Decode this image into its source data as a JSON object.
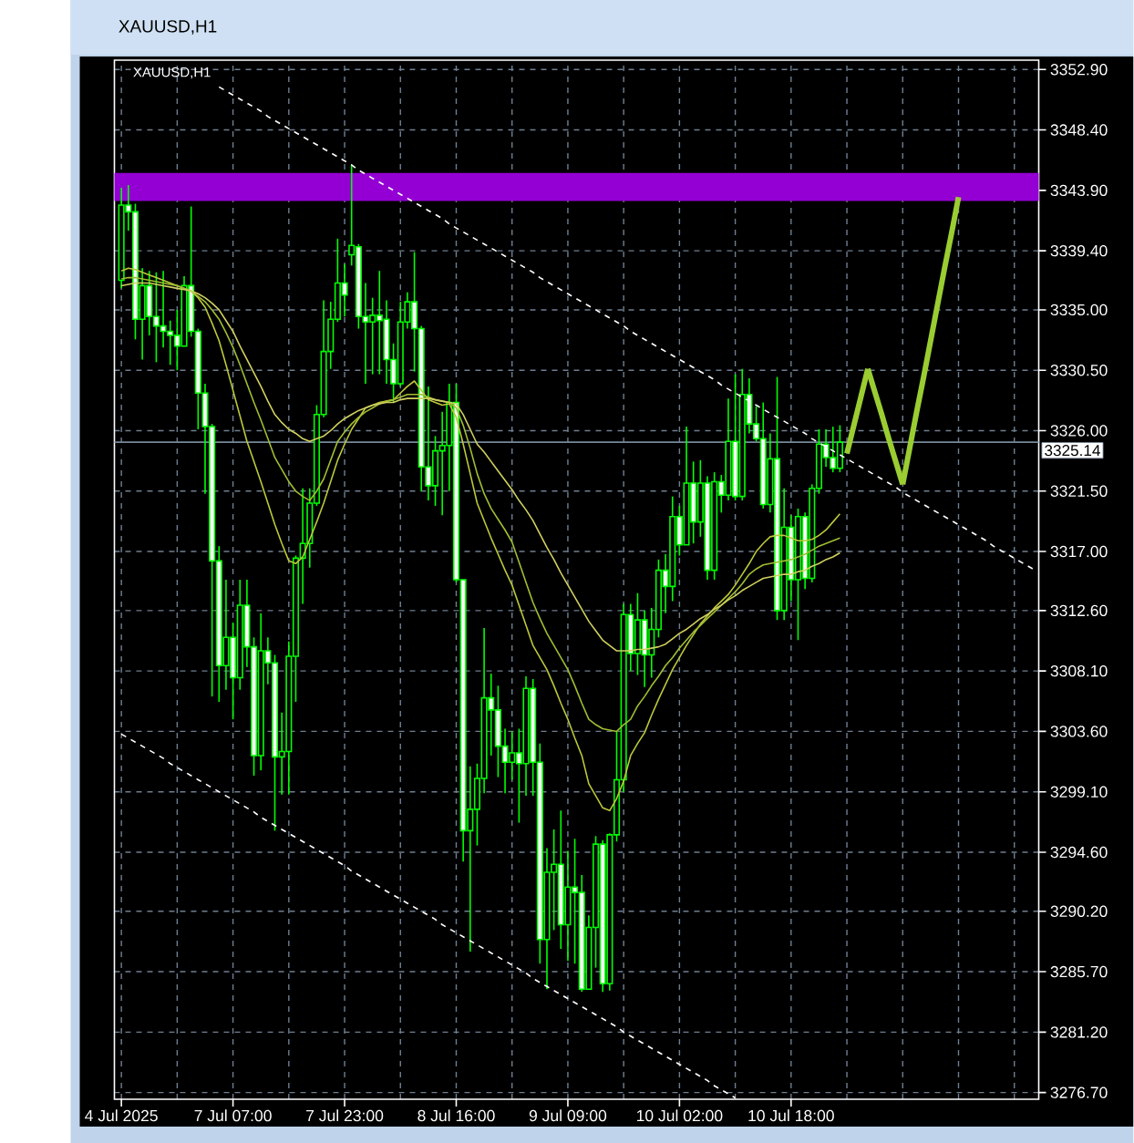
{
  "chart_data": {
    "type": "candlestick",
    "title": "XAUUSD,H1",
    "annotations": [
      "XAUUSD,H1"
    ],
    "categories": [
      "4 Jul 2025",
      null,
      null,
      null,
      null,
      null,
      null,
      null,
      null,
      null,
      null,
      null,
      null,
      null,
      null,
      null,
      "7 Jul 07:00",
      null,
      null,
      null,
      null,
      null,
      null,
      null,
      null,
      null,
      null,
      null,
      null,
      null,
      null,
      null,
      "7 Jul 23:00",
      null,
      null,
      null,
      null,
      null,
      null,
      null,
      null,
      null,
      null,
      null,
      null,
      null,
      null,
      null,
      "8 Jul 16:00",
      null,
      null,
      null,
      null,
      null,
      null,
      null,
      null,
      null,
      null,
      null,
      null,
      null,
      null,
      null,
      "9 Jul 09:00",
      null,
      null,
      null,
      null,
      null,
      null,
      null,
      null,
      null,
      null,
      null,
      null,
      null,
      null,
      null,
      "10 Jul 02:00",
      null,
      null,
      null,
      null,
      null,
      null,
      null,
      null,
      null,
      null,
      null,
      null,
      null,
      null,
      null,
      "10 Jul 18:00",
      null,
      null,
      null,
      null,
      null,
      null,
      null,
      null,
      null,
      null,
      null,
      null,
      null,
      null,
      null,
      null,
      null,
      null,
      null,
      null,
      null,
      null,
      null,
      null,
      null,
      null,
      null,
      null,
      null,
      null,
      null,
      null,
      null,
      null,
      null
    ],
    "series": [
      {
        "type": "line",
        "color": "#bcc83a",
        "values": [
          3337.9,
          3338.1,
          3338.0,
          3337.8,
          3337.6,
          3337.4,
          3337.2,
          3337.0,
          3336.8,
          3336.6,
          3336.4,
          3335.9,
          3335.2,
          3334.0,
          3332.7,
          3330.9,
          3329.0,
          3327.1,
          3325.2,
          3323.7,
          3322.2,
          3320.6,
          3319.0,
          3317.6,
          3316.3,
          3316.1,
          3316.6,
          3317.9,
          3319.2,
          3320.6,
          3322.2,
          3323.8,
          3325.0,
          3326.1,
          3326.9,
          3327.7,
          3327.9,
          3328.1,
          3328.2,
          3328.3,
          3328.8,
          3329.3,
          3329.7,
          3329.0,
          3328.3,
          3328.1,
          3327.9,
          3328.0,
          3327.0,
          3325.0,
          3322.8,
          3320.6,
          3319.3,
          3318.0,
          3316.8,
          3315.6,
          3314.5,
          3313.0,
          3311.5,
          3310.0,
          3309.1,
          3308.2,
          3307.0,
          3305.7,
          3304.5,
          3303.1,
          3301.8,
          3299.7,
          3298.8,
          3297.9,
          3297.7,
          3298.6,
          3299.9,
          3301.8,
          3302.7,
          3303.5,
          3304.8,
          3306.0,
          3307.1,
          3308.2,
          3309.1,
          3310.0,
          3310.8,
          3311.6,
          3312.2,
          3312.8,
          3313.3,
          3313.8,
          3314.5,
          3315.3,
          3316.1,
          3317.0,
          3317.6,
          3318.1,
          3318.2,
          3318.2,
          3318.0,
          3317.8,
          3317.8,
          3317.9,
          3318.2,
          3318.6,
          3319.2,
          3319.8,
          null,
          null,
          null,
          null,
          null,
          null,
          null,
          null,
          null,
          null,
          null,
          null,
          null,
          null,
          null,
          null,
          null,
          null,
          null,
          null,
          null,
          null,
          null,
          null,
          null,
          null,
          null,
          null
        ]
      },
      {
        "type": "line",
        "color": "#a0be32",
        "values": [
          3337.3,
          3337.4,
          3337.4,
          3337.3,
          3337.2,
          3337.1,
          3337.0,
          3336.9,
          3336.8,
          3336.6,
          3336.4,
          3336.0,
          3335.6,
          3335.0,
          3334.3,
          3333.3,
          3332.2,
          3330.9,
          3329.5,
          3328.1,
          3326.8,
          3325.4,
          3324.0,
          3323.1,
          3322.2,
          3321.5,
          3321.1,
          3320.8,
          3321.5,
          3322.4,
          3323.8,
          3325.2,
          3325.9,
          3326.5,
          3327.0,
          3327.4,
          3327.7,
          3328.0,
          3328.2,
          3328.3,
          3328.5,
          3328.7,
          3328.7,
          3328.7,
          3328.5,
          3328.3,
          3328.2,
          3328.1,
          3327.7,
          3326.4,
          3324.7,
          3322.8,
          3321.3,
          3320.2,
          3319.4,
          3318.6,
          3317.7,
          3316.2,
          3314.7,
          3313.2,
          3312.0,
          3310.9,
          3310.0,
          3309.1,
          3308.2,
          3307.0,
          3305.7,
          3304.5,
          3304.1,
          3303.8,
          3303.7,
          3303.6,
          3304.1,
          3304.5,
          3305.5,
          3306.2,
          3307.0,
          3307.7,
          3308.5,
          3309.1,
          3309.8,
          3310.4,
          3311.0,
          3311.5,
          3312.0,
          3312.5,
          3313.0,
          3313.5,
          3314.0,
          3314.6,
          3315.3,
          3315.7,
          3316.0,
          3316.1,
          3316.2,
          3316.3,
          3316.4,
          3316.6,
          3316.8,
          3317.1,
          3317.4,
          3317.6,
          3317.8,
          3318.0,
          null,
          null,
          null,
          null,
          null,
          null,
          null,
          null,
          null,
          null,
          null,
          null,
          null,
          null,
          null,
          null,
          null,
          null,
          null,
          null,
          null,
          null,
          null,
          null,
          null,
          null,
          null,
          null
        ]
      },
      {
        "type": "line",
        "color": "#d0d060",
        "values": [
          3336.8,
          3336.9,
          3337.0,
          3337.0,
          3337.0,
          3336.9,
          3336.8,
          3336.7,
          3336.6,
          3336.5,
          3336.4,
          3336.2,
          3335.9,
          3335.5,
          3335.0,
          3334.2,
          3333.4,
          3332.3,
          3331.3,
          3330.3,
          3329.3,
          3328.2,
          3327.2,
          3326.6,
          3326.1,
          3325.8,
          3325.4,
          3325.2,
          3325.4,
          3325.6,
          3326.0,
          3326.5,
          3326.9,
          3327.2,
          3327.5,
          3327.7,
          3327.9,
          3328.0,
          3328.1,
          3328.1,
          3328.3,
          3328.4,
          3328.4,
          3328.4,
          3328.4,
          3328.3,
          3328.2,
          3328.1,
          3328.0,
          3327.2,
          3326.1,
          3325.0,
          3324.4,
          3323.7,
          3323.0,
          3322.3,
          3321.6,
          3320.8,
          3320.1,
          3319.3,
          3318.3,
          3317.3,
          3316.4,
          3315.4,
          3314.5,
          3313.6,
          3312.7,
          3311.8,
          3311.1,
          3310.4,
          3310.0,
          3309.6,
          3309.6,
          3309.6,
          3309.7,
          3309.7,
          3309.8,
          3309.9,
          3310.1,
          3310.5,
          3310.9,
          3311.2,
          3311.6,
          3312.0,
          3312.3,
          3312.7,
          3313.0,
          3313.4,
          3313.7,
          3314.1,
          3314.4,
          3314.7,
          3315.0,
          3315.1,
          3315.2,
          3315.3,
          3315.3,
          3315.5,
          3315.6,
          3315.9,
          3316.1,
          3316.4,
          3316.6,
          3316.9,
          null,
          null,
          null,
          null,
          null,
          null,
          null,
          null,
          null,
          null,
          null,
          null,
          null,
          null,
          null,
          null,
          null,
          null,
          null,
          null,
          null,
          null,
          null,
          null,
          null,
          null,
          null,
          null
        ]
      },
      {
        "type": "line",
        "color": "#ffffff",
        "line_style": "dashed",
        "values": [
          null,
          null,
          null,
          null,
          null,
          null,
          null,
          null,
          null,
          null,
          null,
          null,
          null,
          null,
          3351.6,
          3351.3,
          3351.0,
          3350.7,
          3350.4,
          3350.1,
          3349.8,
          3349.4,
          3349.1,
          3348.8,
          3348.5,
          3348.2,
          3347.9,
          3347.6,
          3347.3,
          3347.0,
          3346.7,
          3346.4,
          3346.1,
          3345.8,
          3345.4,
          3345.1,
          3344.8,
          3344.5,
          3344.2,
          3343.9,
          3343.6,
          3343.3,
          3343.0,
          3342.7,
          3342.4,
          3342.1,
          3341.8,
          3341.4,
          3341.1,
          3340.8,
          3340.5,
          3340.2,
          3339.9,
          3339.6,
          3339.3,
          3339.0,
          3338.7,
          3338.4,
          3338.1,
          3337.8,
          3337.4,
          3337.1,
          3336.8,
          3336.5,
          3336.2,
          3335.9,
          3335.6,
          3335.3,
          3335.0,
          3334.7,
          3334.4,
          3334.1,
          3333.8,
          3333.4,
          3333.1,
          3332.8,
          3332.5,
          3332.2,
          3331.9,
          3331.6,
          3331.3,
          3331.0,
          3330.7,
          3330.4,
          3330.1,
          3329.8,
          3329.4,
          3329.1,
          3328.8,
          3328.5,
          3328.2,
          3327.9,
          3327.6,
          3327.3,
          3327.0,
          3326.7,
          3326.4,
          3326.1,
          3325.8,
          3325.4,
          3325.1,
          3324.8,
          3324.5,
          3324.2,
          3323.9,
          3323.6,
          3323.3,
          3323.0,
          3322.7,
          3322.4,
          3322.1,
          3321.8,
          3321.4,
          3321.1,
          3320.8,
          3320.5,
          3320.2,
          3319.9,
          3319.6,
          3319.3,
          3319.0,
          3318.7,
          3318.4,
          3318.1,
          3317.8,
          3317.4,
          3317.1,
          3316.8,
          3316.5,
          3316.2,
          3315.9,
          3315.6
        ]
      },
      {
        "type": "line",
        "color": "#ffffff",
        "line_style": "dashed",
        "values": [
          3303.4,
          3303.1,
          3302.8,
          3302.5,
          3302.2,
          3301.9,
          3301.6,
          3301.2,
          3300.9,
          3300.6,
          3300.3,
          3300.0,
          3299.7,
          3299.4,
          3299.1,
          3298.8,
          3298.5,
          3298.2,
          3297.9,
          3297.6,
          3297.2,
          3296.9,
          3296.6,
          3296.3,
          3296.0,
          3295.7,
          3295.4,
          3295.1,
          3294.8,
          3294.5,
          3294.2,
          3293.9,
          3293.6,
          3293.2,
          3292.9,
          3292.6,
          3292.3,
          3292.0,
          3291.7,
          3291.4,
          3291.1,
          3290.8,
          3290.5,
          3290.2,
          3289.9,
          3289.6,
          3289.2,
          3288.9,
          3288.6,
          3288.3,
          3288.0,
          3287.7,
          3287.4,
          3287.1,
          3286.8,
          3286.5,
          3286.2,
          3285.9,
          3285.6,
          3285.2,
          3284.9,
          3284.6,
          3284.3,
          3284.0,
          3283.7,
          3283.4,
          3283.1,
          3282.8,
          3282.5,
          3282.2,
          3281.9,
          3281.6,
          3281.2,
          3280.9,
          3280.6,
          3280.3,
          3280.0,
          3279.7,
          3279.4,
          3279.1,
          3278.8,
          3278.5,
          3278.2,
          3277.9,
          3277.6,
          3277.2,
          3276.9,
          3276.6,
          3276.3,
          null,
          null,
          null,
          null,
          null,
          null,
          null,
          null,
          null,
          null,
          null,
          null,
          null,
          null,
          null,
          null,
          null,
          null,
          null,
          null,
          null,
          null,
          null,
          null,
          null,
          null,
          null,
          null,
          null,
          null,
          null,
          null,
          null,
          null,
          null,
          null,
          null,
          null,
          null,
          null,
          null,
          null,
          null
        ]
      },
      {
        "type": "line",
        "color": "#9acd32",
        "line_style": "solid",
        "values": [
          null,
          null,
          null,
          null,
          null,
          null,
          null,
          null,
          null,
          null,
          null,
          null,
          null,
          null,
          null,
          null,
          null,
          null,
          null,
          null,
          null,
          null,
          null,
          null,
          null,
          null,
          null,
          null,
          null,
          null,
          null,
          null,
          null,
          null,
          null,
          null,
          null,
          null,
          null,
          null,
          null,
          null,
          null,
          null,
          null,
          null,
          null,
          null,
          null,
          null,
          null,
          null,
          null,
          null,
          null,
          null,
          null,
          null,
          null,
          null,
          null,
          null,
          null,
          null,
          null,
          null,
          null,
          null,
          null,
          null,
          null,
          null,
          null,
          null,
          null,
          null,
          null,
          null,
          null,
          null,
          null,
          null,
          null,
          null,
          null,
          null,
          null,
          null,
          null,
          null,
          null,
          null,
          null,
          null,
          null,
          null,
          null,
          null,
          null,
          null,
          null,
          null,
          null,
          null,
          3324.3,
          3326.4,
          3328.5,
          3330.6,
          null,
          null,
          null,
          null,
          null,
          null,
          null,
          null,
          null,
          null,
          null,
          null,
          null,
          null,
          null,
          null,
          null,
          null,
          null,
          null,
          null,
          null,
          null,
          null
        ]
      },
      {
        "type": "line",
        "color": "#9acd32",
        "line_style": "solid",
        "values": [
          null,
          null,
          null,
          null,
          null,
          null,
          null,
          null,
          null,
          null,
          null,
          null,
          null,
          null,
          null,
          null,
          null,
          null,
          null,
          null,
          null,
          null,
          null,
          null,
          null,
          null,
          null,
          null,
          null,
          null,
          null,
          null,
          null,
          null,
          null,
          null,
          null,
          null,
          null,
          null,
          null,
          null,
          null,
          null,
          null,
          null,
          null,
          null,
          null,
          null,
          null,
          null,
          null,
          null,
          null,
          null,
          null,
          null,
          null,
          null,
          null,
          null,
          null,
          null,
          null,
          null,
          null,
          null,
          null,
          null,
          null,
          null,
          null,
          null,
          null,
          null,
          null,
          null,
          null,
          null,
          null,
          null,
          null,
          null,
          null,
          null,
          null,
          null,
          null,
          null,
          null,
          null,
          null,
          null,
          null,
          null,
          null,
          null,
          null,
          null,
          null,
          null,
          null,
          null,
          null,
          null,
          null,
          3330.6,
          3328.9,
          3327.2,
          3325.4,
          3323.7,
          3322.0,
          null,
          null,
          null,
          null,
          null,
          null,
          null,
          null,
          null,
          null,
          null,
          null,
          null,
          null,
          null,
          null,
          null,
          null,
          null
        ]
      },
      {
        "type": "line",
        "color": "#9acd32",
        "line_style": "solid",
        "values": [
          null,
          null,
          null,
          null,
          null,
          null,
          null,
          null,
          null,
          null,
          null,
          null,
          null,
          null,
          null,
          null,
          null,
          null,
          null,
          null,
          null,
          null,
          null,
          null,
          null,
          null,
          null,
          null,
          null,
          null,
          null,
          null,
          null,
          null,
          null,
          null,
          null,
          null,
          null,
          null,
          null,
          null,
          null,
          null,
          null,
          null,
          null,
          null,
          null,
          null,
          null,
          null,
          null,
          null,
          null,
          null,
          null,
          null,
          null,
          null,
          null,
          null,
          null,
          null,
          null,
          null,
          null,
          null,
          null,
          null,
          null,
          null,
          null,
          null,
          null,
          null,
          null,
          null,
          null,
          null,
          null,
          null,
          null,
          null,
          null,
          null,
          null,
          null,
          null,
          null,
          null,
          null,
          null,
          null,
          null,
          null,
          null,
          null,
          null,
          null,
          null,
          null,
          null,
          null,
          null,
          null,
          null,
          null,
          null,
          null,
          null,
          null,
          3322.0,
          3324.7,
          3327.4,
          3330.0,
          3332.7,
          3335.4,
          3338.1,
          3340.7,
          3343.4,
          null,
          null,
          null,
          null,
          null,
          null,
          null,
          null,
          null,
          null,
          null
        ]
      },
      {
        "color": "#00ff00",
        "ohlc": [
          [
            3337.2,
            3344.1,
            3336.6,
            3342.8
          ],
          [
            3342.8,
            3344.3,
            3340.9,
            3342.3
          ],
          [
            3342.3,
            3342.9,
            3332.8,
            3334.3
          ],
          [
            3334.3,
            3338.1,
            3331.3,
            3336.8
          ],
          [
            3336.8,
            3337.9,
            3333.1,
            3334.5
          ],
          [
            3334.5,
            3337.8,
            3331.1,
            3333.8
          ],
          [
            3333.8,
            3337.9,
            3332.2,
            3333.4
          ],
          [
            3333.4,
            3334.2,
            3330.9,
            3333.1
          ],
          [
            3333.1,
            3335.0,
            3330.5,
            3332.3
          ],
          [
            3332.3,
            3337.5,
            3332.3,
            3336.8
          ],
          [
            3336.8,
            3342.7,
            3333.0,
            3333.4
          ],
          [
            3333.4,
            3333.6,
            3326.1,
            3328.8
          ],
          [
            3328.8,
            3329.5,
            3321.3,
            3326.3
          ],
          [
            3326.3,
            3326.5,
            3306.2,
            3316.3
          ],
          [
            3316.3,
            3317.4,
            3305.8,
            3308.5
          ],
          [
            3308.5,
            3314.9,
            3306.7,
            3310.6
          ],
          [
            3310.6,
            3311.7,
            3304.5,
            3307.6
          ],
          [
            3307.6,
            3314.9,
            3306.7,
            3313.0
          ],
          [
            3313.0,
            3314.9,
            3308.4,
            3309.9
          ],
          [
            3309.9,
            3310.6,
            3300.3,
            3301.8
          ],
          [
            3301.8,
            3312.4,
            3300.7,
            3309.6
          ],
          [
            3309.6,
            3310.6,
            3307.1,
            3308.7
          ],
          [
            3308.7,
            3309.3,
            3296.2,
            3301.7
          ],
          [
            3301.7,
            3305.0,
            3298.9,
            3302.1
          ],
          [
            3302.1,
            3310.3,
            3298.9,
            3309.2
          ],
          [
            3309.2,
            3316.7,
            3305.8,
            3316.5
          ],
          [
            3316.5,
            3321.7,
            3313.1,
            3317.6
          ],
          [
            3317.6,
            3321.7,
            3315.8,
            3320.6
          ],
          [
            3320.6,
            3327.9,
            3320.4,
            3327.2
          ],
          [
            3327.2,
            3335.7,
            3327.0,
            3331.9
          ],
          [
            3331.9,
            3335.6,
            3330.6,
            3334.3
          ],
          [
            3334.3,
            3340.3,
            3334.1,
            3337.0
          ],
          [
            3337.0,
            3338.4,
            3334.5,
            3336.1
          ],
          [
            3339.1,
            3345.8,
            3338.3,
            3339.8
          ],
          [
            3339.7,
            3339.9,
            3333.6,
            3334.5
          ],
          [
            3334.5,
            3337.0,
            3329.5,
            3334.1
          ],
          [
            3334.1,
            3335.9,
            3330.2,
            3334.6
          ],
          [
            3334.6,
            3337.9,
            3330.2,
            3334.2
          ],
          [
            3334.3,
            3335.7,
            3329.5,
            3331.3
          ],
          [
            3331.3,
            3332.5,
            3328.1,
            3329.5
          ],
          [
            3329.5,
            3335.6,
            3329.3,
            3334.1
          ],
          [
            3334.1,
            3336.3,
            3333.6,
            3335.6
          ],
          [
            3335.6,
            3339.3,
            3330.4,
            3333.6
          ],
          [
            3333.6,
            3333.8,
            3321.5,
            3323.3
          ],
          [
            3323.3,
            3329.3,
            3320.8,
            3321.9
          ],
          [
            3321.9,
            3325.6,
            3320.4,
            3324.5
          ],
          [
            3324.5,
            3327.4,
            3319.7,
            3324.9
          ],
          [
            3324.9,
            3329.5,
            3321.5,
            3328.1
          ],
          [
            3328.1,
            3329.5,
            3314.7,
            3314.9
          ],
          [
            3314.9,
            3314.9,
            3293.9,
            3296.2
          ],
          [
            3296.2,
            3301.0,
            3287.2,
            3297.8
          ],
          [
            3297.8,
            3301.2,
            3295.1,
            3300.1
          ],
          [
            3300.1,
            3311.3,
            3299.0,
            3306.1
          ],
          [
            3306.1,
            3307.9,
            3301.8,
            3305.2
          ],
          [
            3305.2,
            3307.0,
            3300.2,
            3302.5
          ],
          [
            3302.5,
            3303.8,
            3299.0,
            3301.3
          ],
          [
            3301.3,
            3303.6,
            3300.0,
            3302.0
          ],
          [
            3302.0,
            3303.8,
            3296.8,
            3301.2
          ],
          [
            3301.2,
            3307.7,
            3298.8,
            3306.8
          ],
          [
            3306.8,
            3307.5,
            3298.8,
            3301.3
          ],
          [
            3301.3,
            3302.7,
            3286.3,
            3288.1
          ],
          [
            3288.1,
            3294.9,
            3284.4,
            3293.1
          ],
          [
            3293.1,
            3296.3,
            3288.8,
            3293.7
          ],
          [
            3293.7,
            3297.7,
            3287.4,
            3289.2
          ],
          [
            3289.2,
            3294.7,
            3286.5,
            3292.0
          ],
          [
            3292.0,
            3295.6,
            3286.3,
            3291.6
          ],
          [
            3291.6,
            3292.9,
            3284.2,
            3284.4
          ],
          [
            3284.4,
            3289.9,
            3284.4,
            3289.0
          ],
          [
            3289.0,
            3295.8,
            3286.0,
            3295.2
          ],
          [
            3295.2,
            3295.5,
            3284.2,
            3284.8
          ],
          [
            3284.8,
            3296.0,
            3284.3,
            3295.9
          ],
          [
            3295.9,
            3303.6,
            3295.4,
            3300.0
          ],
          [
            3300.0,
            3313.1,
            3299.1,
            3312.3
          ],
          [
            3312.3,
            3313.1,
            3308.1,
            3309.4
          ],
          [
            3309.4,
            3313.9,
            3307.8,
            3311.9
          ],
          [
            3311.9,
            3312.6,
            3306.9,
            3309.3
          ],
          [
            3309.3,
            3312.8,
            3307.6,
            3311.2
          ],
          [
            3311.2,
            3316.4,
            3310.6,
            3315.6
          ],
          [
            3315.6,
            3316.8,
            3312.4,
            3314.4
          ],
          [
            3314.4,
            3321.1,
            3313.3,
            3319.6
          ],
          [
            3319.6,
            3320.4,
            3316.7,
            3317.5
          ],
          [
            3317.5,
            3326.3,
            3317.5,
            3322.1
          ],
          [
            3322.1,
            3323.7,
            3317.6,
            3319.2
          ],
          [
            3319.2,
            3323.8,
            3318.1,
            3322.1
          ],
          [
            3322.1,
            3322.6,
            3314.9,
            3315.6
          ],
          [
            3315.6,
            3322.9,
            3314.9,
            3322.2
          ],
          [
            3322.2,
            3322.7,
            3319.9,
            3321.2
          ],
          [
            3321.2,
            3328.4,
            3320.8,
            3325.2
          ],
          [
            3325.2,
            3330.2,
            3320.8,
            3321.1
          ],
          [
            3321.1,
            3330.6,
            3320.8,
            3328.7
          ],
          [
            3328.7,
            3329.9,
            3325.8,
            3326.5
          ],
          [
            3326.5,
            3327.8,
            3325.2,
            3325.4
          ],
          [
            3325.4,
            3328.1,
            3320.2,
            3320.5
          ],
          [
            3320.5,
            3325.8,
            3319.9,
            3323.9
          ],
          [
            3323.9,
            3330.0,
            3311.9,
            3312.6
          ],
          [
            3312.6,
            3321.7,
            3311.9,
            3318.8
          ],
          [
            3318.8,
            3319.7,
            3313.3,
            3314.9
          ],
          [
            3314.9,
            3320.2,
            3310.4,
            3319.6
          ],
          [
            3319.6,
            3319.9,
            3314.2,
            3315.0
          ],
          [
            3315.0,
            3322.0,
            3314.7,
            3321.7
          ],
          [
            3321.7,
            3326.1,
            3321.3,
            3325.0
          ],
          [
            3325.0,
            3326.1,
            3323.3,
            3324.0
          ],
          [
            3324.0,
            3326.3,
            3322.9,
            3323.2
          ],
          [
            3323.2,
            3326.4,
            3322.9,
            3325.14
          ],
          null,
          null,
          null,
          null,
          null,
          null,
          null,
          null,
          null,
          null,
          null,
          null,
          null,
          null,
          null,
          null,
          null,
          null,
          null,
          null,
          null,
          null,
          null,
          null,
          null,
          null,
          null,
          null
        ]
      }
    ],
    "ylim": [
      3276.2,
      3353.6
    ],
    "yticks": [
      {
        "value": 3352.9,
        "label": "3352.90"
      },
      {
        "value": 3348.4,
        "label": "3348.40"
      },
      {
        "value": 3343.9,
        "label": "3343.90"
      },
      {
        "value": 3339.4,
        "label": "3339.40"
      },
      {
        "value": 3335.0,
        "label": "3335.00"
      },
      {
        "value": 3330.5,
        "label": "3330.50"
      },
      {
        "value": 3326.0,
        "label": "3326.00"
      },
      {
        "value": 3321.5,
        "label": "3321.50"
      },
      {
        "value": 3317.0,
        "label": "3317.00"
      },
      {
        "value": 3312.6,
        "label": "3312.60"
      },
      {
        "value": 3308.1,
        "label": "3308.10"
      },
      {
        "value": 3303.6,
        "label": "3303.60"
      },
      {
        "value": 3299.1,
        "label": "3299.10"
      },
      {
        "value": 3294.6,
        "label": "3294.60"
      },
      {
        "value": 3290.2,
        "label": "3290.20"
      },
      {
        "value": 3285.7,
        "label": "3285.70"
      },
      {
        "value": 3281.2,
        "label": "3281.20"
      },
      {
        "value": 3276.7,
        "label": "3276.70"
      }
    ],
    "grid": true,
    "bands": [
      {
        "axis": "y",
        "from": 3343.1,
        "to": 3345.2,
        "color": "#9400d3"
      }
    ],
    "ref_lines": [
      {
        "axis": "y",
        "value": 3325.14,
        "label": "3325.14",
        "color": "#778899"
      }
    ]
  }
}
